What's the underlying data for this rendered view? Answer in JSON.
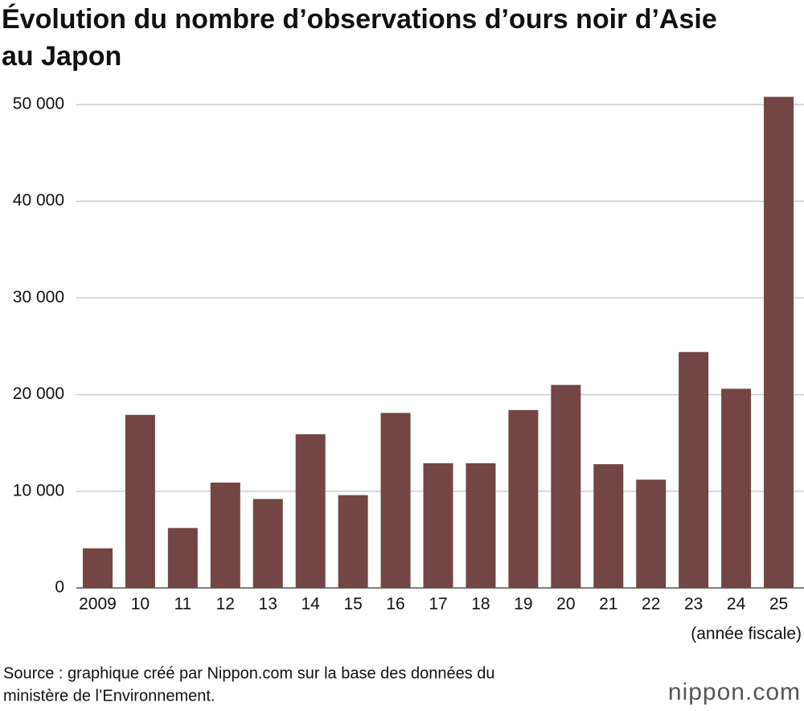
{
  "chart_data": {
    "type": "bar",
    "title": "Évolution du nombre d’observations d’ours noir d’Asie au Japon",
    "categories": [
      "2009",
      "10",
      "11",
      "12",
      "13",
      "14",
      "15",
      "16",
      "17",
      "18",
      "19",
      "20",
      "21",
      "22",
      "23",
      "24",
      "25"
    ],
    "values": [
      4100,
      17900,
      6200,
      10900,
      9200,
      15900,
      9600,
      18100,
      12900,
      12900,
      18400,
      21000,
      12800,
      11200,
      24400,
      20600,
      50800
    ],
    "color": "#734545",
    "x_label": "(année fiscale)",
    "ylim": [
      0,
      50000
    ],
    "yticks": [
      0,
      {
        "value": 10000,
        "label": "10 000"
      },
      {
        "value": 20000,
        "label": "20 000"
      },
      {
        "value": 30000,
        "label": "30 000"
      },
      {
        "value": 40000,
        "label": "40 000"
      },
      {
        "value": 50000,
        "label": "50 000"
      }
    ],
    "grid": true,
    "source": [
      "Source : graphique créé par Nippon.com sur la base des données du",
      "ministère de l’Environnement."
    ],
    "logo": "nippon.com"
  }
}
